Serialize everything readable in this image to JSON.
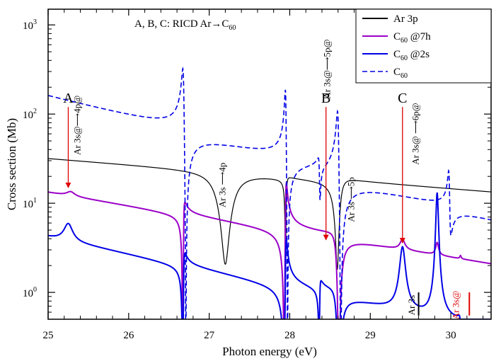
{
  "chart_data": {
    "type": "line",
    "title": "A, B, C:  RICD Ar→C60",
    "title_parts": {
      "prefix": "A, B, C:  RICD Ar→C",
      "sub": "60"
    },
    "xlabel": "Photon energy (eV)",
    "ylabel": "Cross section (Mb)",
    "xlim": [
      25,
      30.5
    ],
    "ylim": [
      0.5,
      1500
    ],
    "yscale": "log",
    "xticks": [
      {
        "value": 25,
        "label": "25"
      },
      {
        "value": 26,
        "label": "26"
      },
      {
        "value": 27,
        "label": "27"
      },
      {
        "value": 28,
        "label": "28"
      },
      {
        "value": 29,
        "label": "29"
      },
      {
        "value": 30,
        "label": "30"
      }
    ],
    "yticks": [
      {
        "value": 1,
        "base": "10",
        "exp": "0"
      },
      {
        "value": 10,
        "base": "10",
        "exp": "1"
      },
      {
        "value": 100,
        "base": "10",
        "exp": "2"
      },
      {
        "value": 1000,
        "base": "10",
        "exp": "3"
      }
    ],
    "legend": {
      "position": "top-right",
      "entries": [
        {
          "name": "Ar 3p",
          "sub": "",
          "suffix": "",
          "color": "#000000",
          "dash": false
        },
        {
          "name": "C",
          "sub": "60",
          "suffix": " @7h",
          "color": "#9b00c8",
          "dash": false
        },
        {
          "name": "C",
          "sub": "60",
          "suffix": " @2s",
          "color": "#0000e6",
          "dash": false
        },
        {
          "name": "C",
          "sub": "60",
          "suffix": "",
          "color": "#0000e6",
          "dash": true
        }
      ]
    },
    "series": [
      {
        "name": "Ar 3p",
        "color": "#000000",
        "width": 1.2,
        "dash": false,
        "base": {
          "a": 32,
          "b": -0.16
        },
        "features": [
          {
            "type": "dip",
            "x0": 27.2,
            "gamma": 0.13,
            "depth": 29
          },
          {
            "type": "fano",
            "x0": 27.95,
            "gamma": 0.012,
            "q": 0.2,
            "amp": 0.9
          },
          {
            "type": "fano",
            "x0": 28.6,
            "gamma": 0.05,
            "q": 0.2,
            "amp": 0.9
          }
        ],
        "min": 0.5
      },
      {
        "name": "C60 @7h",
        "color": "#9b00c8",
        "width": 2.0,
        "dash": false,
        "base": {
          "a": 13.5,
          "b": -0.34
        },
        "features": [
          {
            "type": "peak",
            "x0": 25.28,
            "gamma": 0.06,
            "amp": 1.5
          },
          {
            "type": "fano",
            "x0": 26.68,
            "gamma": 0.012,
            "q": 0.6,
            "amp": 1.05
          },
          {
            "type": "fano",
            "x0": 27.95,
            "gamma": 0.012,
            "q": 1.5,
            "amp": 1.0
          },
          {
            "type": "fano",
            "x0": 28.6,
            "gamma": 0.04,
            "q": -0.25,
            "amp": 1.0
          },
          {
            "type": "peak",
            "x0": 29.4,
            "gamma": 0.035,
            "amp": 0.9
          },
          {
            "type": "peak",
            "x0": 29.83,
            "gamma": 0.02,
            "amp": 1.0
          },
          {
            "type": "peak",
            "x0": 30.12,
            "gamma": 0.01,
            "amp": 0.2
          }
        ],
        "min": 0.5
      },
      {
        "name": "C60 @2s",
        "color": "#0000e6",
        "width": 2.0,
        "dash": false,
        "base": {
          "a": 4.3,
          "b": -0.44
        },
        "features": [
          {
            "type": "peak",
            "x0": 25.25,
            "gamma": 0.06,
            "amp": 2.2
          },
          {
            "type": "fano",
            "x0": 26.68,
            "gamma": 0.012,
            "q": 0.6,
            "amp": 1.05
          },
          {
            "type": "fano",
            "x0": 27.95,
            "gamma": 0.012,
            "q": 1.5,
            "amp": 1.0
          },
          {
            "type": "fano",
            "x0": 28.37,
            "gamma": 0.01,
            "q": 0.5,
            "amp": 0.8
          },
          {
            "type": "fano",
            "x0": 28.6,
            "gamma": 0.04,
            "q": -0.25,
            "amp": 1.0
          },
          {
            "type": "peak",
            "x0": 29.4,
            "gamma": 0.035,
            "amp": 2.6
          },
          {
            "type": "peak",
            "x0": 29.83,
            "gamma": 0.015,
            "amp": 12.5
          },
          {
            "type": "fano",
            "x0": 30.12,
            "gamma": 0.008,
            "q": -0.5,
            "amp": 0.4
          }
        ],
        "min": 0.5
      },
      {
        "name": "C60",
        "color": "#0000e6",
        "width": 1.6,
        "dash": true,
        "base": {
          "a": 150,
          "b": -0.55
        },
        "features": [
          {
            "type": "fano",
            "x0": 26.68,
            "gamma": 0.015,
            "q": -2.0,
            "amp": 1.0
          },
          {
            "type": "fano",
            "x0": 27.95,
            "gamma": 0.01,
            "q": -2.2,
            "amp": 1.0
          },
          {
            "type": "fano",
            "x0": 28.37,
            "gamma": 0.01,
            "q": -0.6,
            "amp": 0.6
          },
          {
            "type": "fano",
            "x0": 28.6,
            "gamma": 0.015,
            "q": -2.2,
            "amp": 1.0
          },
          {
            "type": "fano",
            "x0": 29.98,
            "gamma": 0.012,
            "q": -1.8,
            "amp": 0.5
          }
        ],
        "min": 0.5
      }
    ],
    "markers": [
      {
        "label": "A",
        "x": 25.25,
        "y_top": 120,
        "y_bottom": 15
      },
      {
        "label": "B",
        "x": 28.45,
        "y_top": 120,
        "y_bottom": 3.9
      },
      {
        "label": "C",
        "x": 29.4,
        "y_top": 120,
        "y_bottom": 3.6
      }
    ],
    "annotations": [
      {
        "text": "Ar 3s@⟶4p@",
        "x": 25.4,
        "y": 75,
        "color": "#000000"
      },
      {
        "text": "Ar 3s ⟶4p",
        "x": 27.2,
        "y": 16,
        "color": "#000000"
      },
      {
        "text": "Ar 3s@⟶5p@",
        "x": 28.5,
        "y": 320,
        "color": "#000000"
      },
      {
        "text": "Ar 3s ⟶5p",
        "x": 28.8,
        "y": 11,
        "color": "#000000"
      },
      {
        "text": "Ar 3s@ ⟶6p@",
        "x": 29.6,
        "y": 60,
        "color": "#000000"
      },
      {
        "text": "Ar 3s",
        "x": 29.55,
        "y": 0.72,
        "color": "#000000"
      },
      {
        "text": "Ar 3s@",
        "x": 30.1,
        "y": 0.72,
        "color": "#e00000"
      }
    ],
    "thresholds": [
      {
        "x": 29.6,
        "y_low": 0.55,
        "y_high": 1.0,
        "color": "#000000"
      },
      {
        "x": 30.23,
        "y_low": 0.55,
        "y_high": 1.0,
        "color": "#e00000"
      }
    ]
  }
}
